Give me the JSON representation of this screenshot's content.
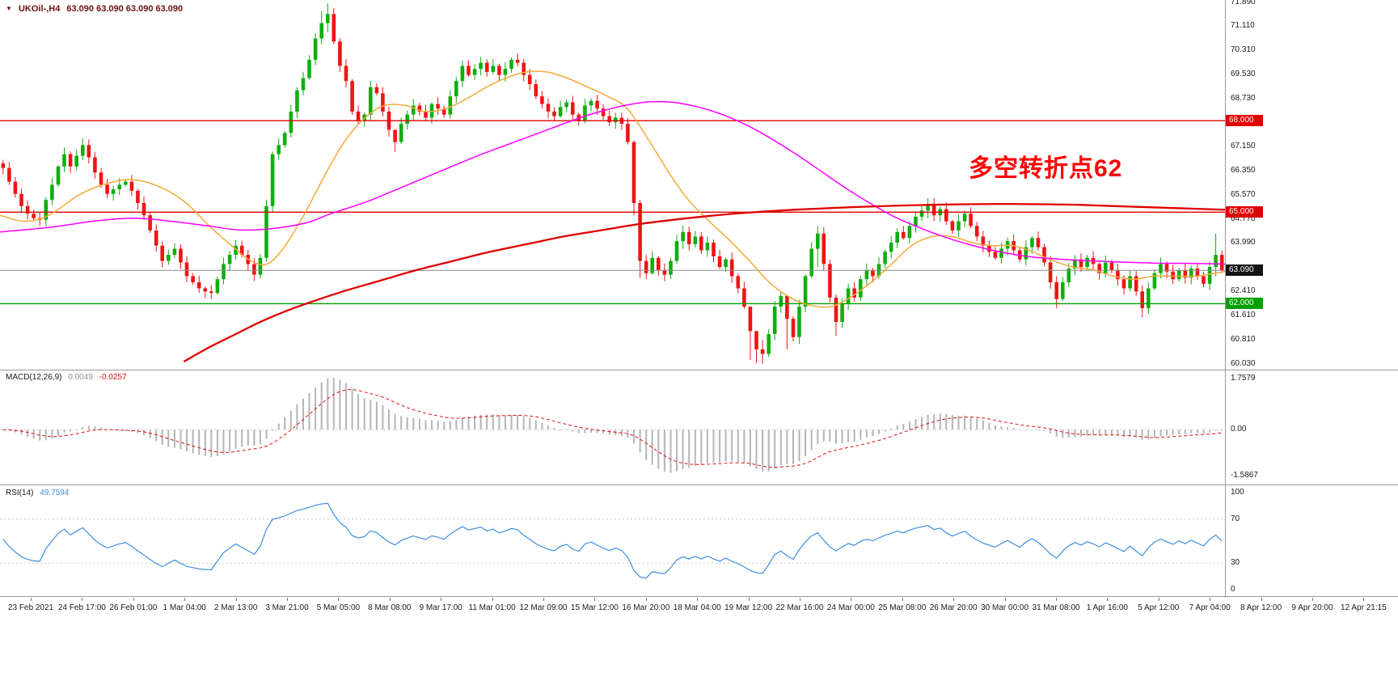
{
  "header": {
    "symbol": "UKOil-,H4",
    "ohlc_text": "63.090 63.090 63.090 63.090",
    "color": "#6b1111"
  },
  "icons": {
    "triangle_down": "▼"
  },
  "annotation": {
    "text": "多空转折点62",
    "color": "#ff0000"
  },
  "chart_data": {
    "type": "candlestick",
    "symbol": "UKOil-",
    "timeframe": "H4",
    "current_price": 63.09,
    "price_axis": {
      "range": [
        59.86,
        71.96
      ],
      "ticks": [
        "71.890",
        "71.110",
        "70.310",
        "69.530",
        "68.730",
        "67.150",
        "66.350",
        "65.570",
        "64.770",
        "63.990",
        "62.410",
        "61.610",
        "60.810",
        "60.030"
      ],
      "badges": [
        {
          "label": "68.000",
          "price": 68.0,
          "bg": "#e00000"
        },
        {
          "label": "65.000",
          "price": 65.0,
          "bg": "#e00000"
        },
        {
          "label": "63.090",
          "price": 63.09,
          "bg": "#141414"
        },
        {
          "label": "62.000",
          "price": 62.0,
          "bg": "#00a000"
        }
      ]
    },
    "hlines": [
      {
        "price": 68.0,
        "color": "#e00000",
        "width": 1.4
      },
      {
        "price": 65.0,
        "color": "#e00000",
        "width": 1.4
      },
      {
        "price": 62.0,
        "color": "#00a000",
        "width": 1.4
      },
      {
        "price": 63.09,
        "color": "#8c8c8c",
        "width": 1
      }
    ],
    "time_ticks": [
      "23 Feb 2021",
      "24 Feb 17:00",
      "26 Feb 01:00",
      "1 Mar 04:00",
      "2 Mar 13:00",
      "3 Mar 21:00",
      "5 Mar 05:00",
      "8 Mar 08:00",
      "9 Mar 17:00",
      "11 Mar 01:00",
      "12 Mar 09:00",
      "15 Mar 12:00",
      "16 Mar 20:00",
      "18 Mar 04:00",
      "19 Mar 12:00",
      "22 Mar 16:00",
      "24 Mar 00:00",
      "25 Mar 08:00",
      "26 Mar 20:00",
      "30 Mar 00:00",
      "31 Mar 08:00",
      "1 Apr 16:00",
      "5 Apr 12:00",
      "7 Apr 04:00",
      "8 Apr 12:00",
      "9 Apr 20:00",
      "12 Apr 21:15"
    ],
    "candles": {
      "up_color": "#0fae0f",
      "down_color": "#ef1414",
      "first_open": 66.6,
      "closes": [
        66.45,
        66.0,
        65.6,
        65.2,
        64.95,
        64.8,
        64.75,
        65.4,
        65.9,
        66.5,
        66.9,
        66.5,
        66.85,
        67.2,
        66.8,
        66.3,
        65.9,
        65.6,
        65.75,
        65.9,
        66.0,
        65.7,
        65.3,
        64.9,
        64.4,
        63.9,
        63.4,
        63.6,
        63.8,
        63.35,
        62.9,
        62.7,
        62.5,
        62.4,
        62.35,
        62.8,
        63.3,
        63.6,
        63.9,
        63.6,
        63.3,
        62.95,
        63.5,
        65.2,
        66.9,
        67.2,
        67.6,
        68.3,
        69.0,
        69.4,
        70.0,
        70.7,
        71.2,
        71.5,
        70.6,
        69.8,
        69.3,
        68.3,
        68.0,
        68.2,
        69.1,
        68.9,
        68.3,
        67.7,
        67.3,
        67.9,
        68.2,
        68.5,
        68.3,
        68.1,
        68.55,
        68.4,
        68.2,
        68.8,
        69.3,
        69.8,
        69.5,
        69.7,
        69.9,
        69.6,
        69.8,
        69.5,
        69.7,
        70.0,
        69.9,
        69.5,
        69.2,
        68.8,
        68.55,
        68.3,
        68.15,
        68.45,
        68.6,
        68.2,
        68.0,
        68.5,
        68.65,
        68.4,
        68.15,
        67.95,
        68.1,
        67.9,
        67.3,
        65.3,
        63.4,
        63.0,
        63.5,
        63.1,
        62.95,
        63.4,
        64.05,
        64.35,
        63.95,
        64.2,
        63.75,
        64.0,
        63.55,
        63.2,
        63.45,
        62.9,
        62.5,
        61.9,
        61.1,
        60.5,
        60.35,
        61.0,
        61.9,
        62.25,
        61.5,
        60.9,
        61.9,
        62.9,
        63.8,
        64.3,
        63.3,
        62.2,
        61.4,
        62.0,
        62.5,
        62.2,
        62.8,
        63.1,
        62.9,
        63.3,
        63.7,
        64.0,
        64.35,
        64.15,
        64.55,
        64.85,
        65.05,
        65.25,
        64.9,
        65.1,
        64.7,
        64.4,
        64.7,
        64.95,
        64.55,
        64.2,
        63.9,
        63.7,
        63.5,
        63.8,
        64.05,
        63.75,
        63.45,
        63.85,
        64.15,
        63.85,
        63.35,
        62.7,
        62.15,
        62.7,
        63.15,
        63.45,
        63.2,
        63.5,
        63.3,
        63.0,
        63.35,
        63.1,
        62.8,
        62.5,
        62.9,
        62.4,
        61.85,
        62.5,
        63.0,
        63.3,
        63.05,
        62.8,
        63.1,
        62.85,
        63.15,
        62.9,
        62.65,
        63.2,
        63.6,
        63.09
      ],
      "wick_overrides": {
        "6": [
          65.0,
          64.55
        ],
        "13": [
          67.42,
          66.7
        ],
        "34": [
          62.6,
          62.15
        ],
        "52": [
          71.6,
          70.5
        ],
        "53": [
          71.85,
          70.9
        ],
        "58": [
          68.5,
          67.88
        ],
        "64": [
          67.6,
          66.98
        ],
        "103": [
          67.35,
          64.9
        ],
        "104": [
          65.4,
          62.85
        ],
        "105": [
          63.6,
          62.8
        ],
        "111": [
          64.55,
          63.8
        ],
        "122": [
          61.2,
          60.15
        ],
        "123": [
          60.9,
          60.05
        ],
        "124": [
          60.8,
          60.03
        ],
        "128": [
          61.6,
          60.5
        ],
        "133": [
          64.55,
          63.2
        ],
        "136": [
          62.3,
          60.95
        ],
        "151": [
          65.45,
          64.8
        ],
        "172": [
          62.9,
          61.85
        ],
        "186": [
          62.6,
          61.55
        ],
        "198": [
          64.3,
          62.9
        ]
      }
    },
    "moving_averages": [
      {
        "name": "fast-ma",
        "color": "#f5a93b",
        "width": 1.5,
        "points": [
          [
            0,
            64.9
          ],
          [
            0.02,
            64.7
          ],
          [
            0.04,
            64.9
          ],
          [
            0.066,
            65.6
          ],
          [
            0.093,
            66.0
          ],
          [
            0.112,
            66.05
          ],
          [
            0.132,
            65.8
          ],
          [
            0.152,
            65.3
          ],
          [
            0.172,
            64.5
          ],
          [
            0.192,
            63.8
          ],
          [
            0.205,
            63.4
          ],
          [
            0.218,
            63.3
          ],
          [
            0.231,
            63.8
          ],
          [
            0.248,
            64.9
          ],
          [
            0.265,
            66.2
          ],
          [
            0.281,
            67.3
          ],
          [
            0.298,
            68.1
          ],
          [
            0.314,
            68.5
          ],
          [
            0.331,
            68.5
          ],
          [
            0.347,
            68.3
          ],
          [
            0.364,
            68.4
          ],
          [
            0.38,
            68.7
          ],
          [
            0.397,
            69.1
          ],
          [
            0.413,
            69.4
          ],
          [
            0.43,
            69.6
          ],
          [
            0.446,
            69.6
          ],
          [
            0.463,
            69.4
          ],
          [
            0.48,
            69.1
          ],
          [
            0.496,
            68.8
          ],
          [
            0.512,
            68.4
          ],
          [
            0.529,
            67.4
          ],
          [
            0.546,
            66.3
          ],
          [
            0.562,
            65.4
          ],
          [
            0.579,
            64.7
          ],
          [
            0.595,
            64.1
          ],
          [
            0.612,
            63.4
          ],
          [
            0.628,
            62.7
          ],
          [
            0.645,
            62.2
          ],
          [
            0.661,
            61.95
          ],
          [
            0.678,
            61.9
          ],
          [
            0.694,
            62.2
          ],
          [
            0.711,
            62.7
          ],
          [
            0.728,
            63.3
          ],
          [
            0.744,
            63.9
          ],
          [
            0.761,
            64.2
          ],
          [
            0.777,
            64.2
          ],
          [
            0.794,
            64.0
          ],
          [
            0.81,
            63.9
          ],
          [
            0.827,
            63.9
          ],
          [
            0.843,
            63.7
          ],
          [
            0.86,
            63.4
          ],
          [
            0.876,
            63.2
          ],
          [
            0.893,
            63.1
          ],
          [
            0.909,
            62.9
          ],
          [
            0.926,
            62.8
          ],
          [
            0.942,
            62.9
          ],
          [
            0.959,
            62.9
          ],
          [
            0.976,
            62.9
          ],
          [
            0.992,
            63.0
          ],
          [
            1,
            63.05
          ]
        ]
      },
      {
        "name": "mid-ma",
        "color": "#ff00ff",
        "width": 1.5,
        "points": [
          [
            0,
            64.35
          ],
          [
            0.04,
            64.5
          ],
          [
            0.08,
            64.72
          ],
          [
            0.11,
            64.8
          ],
          [
            0.14,
            64.7
          ],
          [
            0.17,
            64.55
          ],
          [
            0.195,
            64.42
          ],
          [
            0.22,
            64.45
          ],
          [
            0.25,
            64.65
          ],
          [
            0.27,
            64.95
          ],
          [
            0.3,
            65.35
          ],
          [
            0.33,
            65.85
          ],
          [
            0.36,
            66.35
          ],
          [
            0.39,
            66.85
          ],
          [
            0.42,
            67.3
          ],
          [
            0.45,
            67.75
          ],
          [
            0.47,
            68.05
          ],
          [
            0.49,
            68.3
          ],
          [
            0.51,
            68.5
          ],
          [
            0.53,
            68.62
          ],
          [
            0.55,
            68.6
          ],
          [
            0.57,
            68.45
          ],
          [
            0.59,
            68.2
          ],
          [
            0.61,
            67.85
          ],
          [
            0.63,
            67.4
          ],
          [
            0.65,
            66.9
          ],
          [
            0.67,
            66.35
          ],
          [
            0.69,
            65.8
          ],
          [
            0.71,
            65.3
          ],
          [
            0.73,
            64.85
          ],
          [
            0.75,
            64.5
          ],
          [
            0.77,
            64.2
          ],
          [
            0.79,
            63.95
          ],
          [
            0.81,
            63.75
          ],
          [
            0.83,
            63.6
          ],
          [
            0.85,
            63.5
          ],
          [
            0.88,
            63.42
          ],
          [
            0.91,
            63.37
          ],
          [
            0.94,
            63.33
          ],
          [
            0.97,
            63.32
          ],
          [
            1,
            63.3
          ]
        ]
      },
      {
        "name": "slow-ma",
        "color": "#e00000",
        "width": 2.3,
        "points": [
          [
            0.15,
            60.1
          ],
          [
            0.17,
            60.55
          ],
          [
            0.19,
            60.95
          ],
          [
            0.21,
            61.35
          ],
          [
            0.23,
            61.7
          ],
          [
            0.25,
            62.0
          ],
          [
            0.28,
            62.4
          ],
          [
            0.31,
            62.75
          ],
          [
            0.34,
            63.1
          ],
          [
            0.37,
            63.4
          ],
          [
            0.4,
            63.7
          ],
          [
            0.43,
            63.95
          ],
          [
            0.46,
            64.2
          ],
          [
            0.49,
            64.4
          ],
          [
            0.52,
            64.6
          ],
          [
            0.55,
            64.75
          ],
          [
            0.58,
            64.88
          ],
          [
            0.61,
            64.98
          ],
          [
            0.64,
            65.06
          ],
          [
            0.67,
            65.12
          ],
          [
            0.7,
            65.17
          ],
          [
            0.73,
            65.21
          ],
          [
            0.76,
            65.24
          ],
          [
            0.79,
            65.26
          ],
          [
            0.82,
            65.27
          ],
          [
            0.85,
            65.26
          ],
          [
            0.88,
            65.24
          ],
          [
            0.91,
            65.2
          ],
          [
            0.94,
            65.16
          ],
          [
            0.97,
            65.12
          ],
          [
            1,
            65.08
          ]
        ]
      }
    ],
    "macd": {
      "params": "MACD(12,26,9)",
      "main_label": "0.0049",
      "signal_label": "-0.0257",
      "range": [
        -1.9,
        2.05
      ],
      "scale_ticks": [
        "1.7579",
        "0.00",
        "-1.5867"
      ],
      "histogram_color": "#b5b5b5",
      "signal_color": "#e01010"
    },
    "rsi": {
      "params": "RSI(14)",
      "value_label": "49.7594",
      "range": [
        0,
        100
      ],
      "scale_ticks": [
        "100",
        "70",
        "30",
        "0"
      ],
      "levels": [
        70,
        30
      ],
      "line_color": "#3f8fe0"
    }
  }
}
